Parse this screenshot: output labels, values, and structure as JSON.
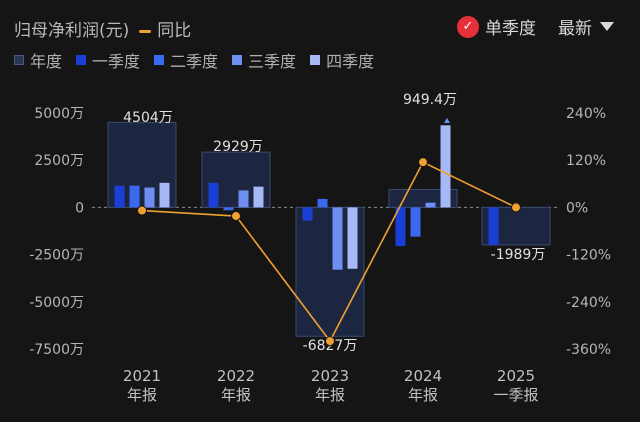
{
  "header": {
    "title": "归母净利润(元)",
    "yoy_label": "同比",
    "mode_label": "单季度",
    "sort_label": "最新"
  },
  "legend": [
    {
      "label": "年度",
      "color": "#2a3550"
    },
    {
      "label": "一季度",
      "color": "#1a3fd6"
    },
    {
      "label": "二季度",
      "color": "#3a68ee"
    },
    {
      "label": "三季度",
      "color": "#6e8ef2"
    },
    {
      "label": "四季度",
      "color": "#a7b8f6"
    }
  ],
  "chart_data": {
    "type": "bar",
    "categories": [
      [
        "2021",
        "年报"
      ],
      [
        "2022",
        "年报"
      ],
      [
        "2023",
        "年报"
      ],
      [
        "2024",
        "年报"
      ],
      [
        "2025",
        "一季报"
      ]
    ],
    "annual": [
      4504,
      2929,
      -6827,
      949.4,
      -1989
    ],
    "annual_labels": [
      "4504万",
      "2929万",
      "-6827万",
      "949.4万",
      "-1989万"
    ],
    "quarters": [
      [
        1150,
        1150,
        1050,
        1300
      ],
      [
        1300,
        -150,
        900,
        1100
      ],
      [
        -700,
        450,
        -3300,
        -3250
      ],
      [
        -2050,
        -1550,
        250,
        4350
      ],
      [
        -1989
      ]
    ],
    "yoy": [
      -8,
      -22,
      -340,
      115,
      0
    ],
    "left_axis": {
      "ticks": [
        5000,
        2500,
        0,
        -2500,
        -5000,
        -7500
      ],
      "labels": [
        "5000万",
        "2500万",
        "0",
        "-2500万",
        "-5000万",
        "-7500万"
      ],
      "ylim": [
        -7500,
        5000
      ]
    },
    "right_axis": {
      "ticks": [
        240,
        120,
        0,
        -120,
        -240,
        -360
      ],
      "labels": [
        "240%",
        "120%",
        "0%",
        "-120%",
        "-240%",
        "-360%"
      ],
      "ylim": [
        -360,
        240
      ]
    },
    "colors": {
      "annual_fill": "#1d2640",
      "annual_stroke": "#3a4a70",
      "line": "#f0a030"
    }
  }
}
